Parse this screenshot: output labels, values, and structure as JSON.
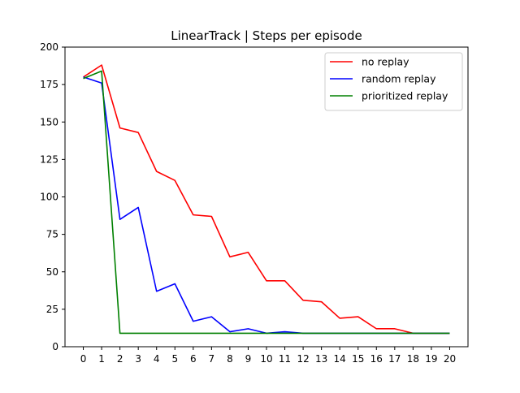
{
  "chart_data": {
    "type": "line",
    "title": "LinearTrack | Steps per episode",
    "xlabel": "",
    "ylabel": "",
    "x": [
      0,
      1,
      2,
      3,
      4,
      5,
      6,
      7,
      8,
      9,
      10,
      11,
      12,
      13,
      14,
      15,
      16,
      17,
      18,
      19,
      20
    ],
    "xlim": [
      -1,
      21
    ],
    "ylim": [
      0,
      200
    ],
    "yticks": [
      0,
      25,
      50,
      75,
      100,
      125,
      150,
      175,
      200
    ],
    "grid": false,
    "legend_position": "top-right",
    "series": [
      {
        "name": "no replay",
        "color": "#ff0000",
        "values": [
          180,
          188,
          146,
          143,
          117,
          111,
          88,
          87,
          60,
          63,
          44,
          44,
          31,
          30,
          19,
          20,
          12,
          12,
          9,
          9,
          9
        ]
      },
      {
        "name": "random replay",
        "color": "#0000ff",
        "values": [
          180,
          176,
          85,
          93,
          37,
          42,
          17,
          20,
          10,
          12,
          9,
          10,
          9,
          9,
          9,
          9,
          9,
          9,
          9,
          9,
          9
        ]
      },
      {
        "name": "prioritized replay",
        "color": "#008000",
        "values": [
          179,
          184,
          9,
          9,
          9,
          9,
          9,
          9,
          9,
          9,
          9,
          9,
          9,
          9,
          9,
          9,
          9,
          9,
          9,
          9,
          9
        ]
      }
    ]
  }
}
